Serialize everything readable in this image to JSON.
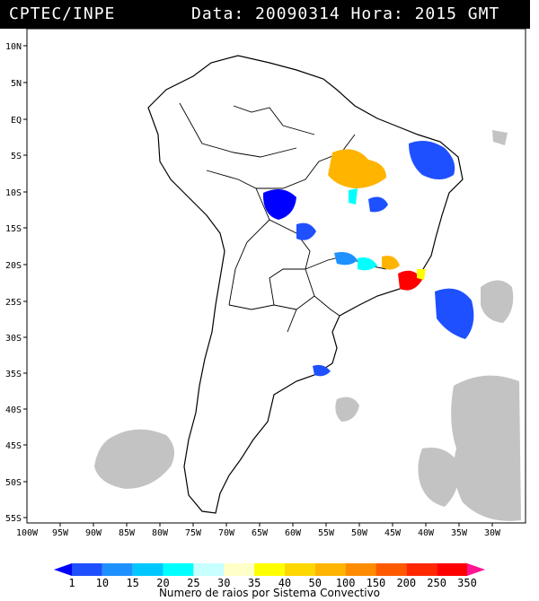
{
  "header": {
    "agency": "CPTEC/INPE",
    "datetime": "Data: 20090314 Hora: 2015 GMT"
  },
  "map": {
    "lat_labels": [
      "10N",
      "5N",
      "EQ",
      "5S",
      "10S",
      "15S",
      "20S",
      "25S",
      "30S",
      "35S",
      "40S",
      "45S",
      "50S",
      "55S"
    ],
    "lon_labels": [
      "100W",
      "95W",
      "90W",
      "85W",
      "80W",
      "75W",
      "70W",
      "65W",
      "60W",
      "55W",
      "50W",
      "45W",
      "40W",
      "35W",
      "30W"
    ],
    "cloud_color": "#bdbdbd",
    "border_color": "#000000"
  },
  "legend": {
    "title": "Numero de raios por Sistema Convectivo",
    "ticks": [
      "1",
      "10",
      "15",
      "20",
      "25",
      "30",
      "35",
      "40",
      "50",
      "100",
      "150",
      "200",
      "250",
      "350"
    ],
    "colors": [
      "#0000ff",
      "#1e50ff",
      "#1e90ff",
      "#00c8ff",
      "#00ffff",
      "#c8ffff",
      "#ffffc8",
      "#ffff00",
      "#ffd700",
      "#ffb400",
      "#ff8c00",
      "#ff5a00",
      "#ff2800",
      "#ff0000",
      "#ff1493"
    ]
  }
}
